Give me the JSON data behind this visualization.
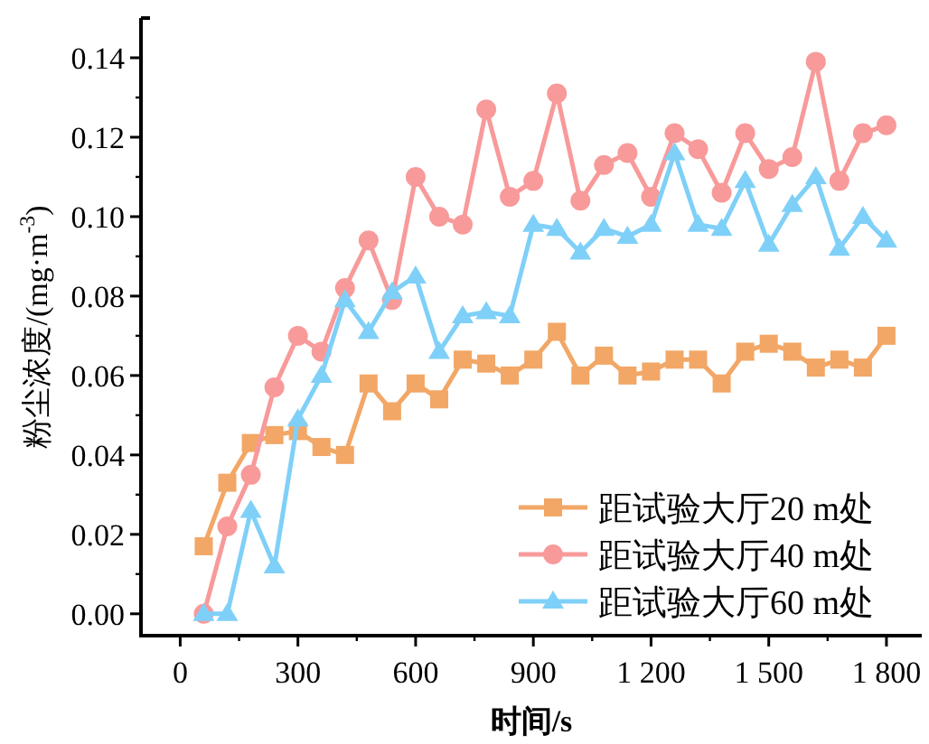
{
  "chart_data": {
    "type": "line",
    "xlabel": "时间/s",
    "ylabel": "粉尘浓度/(mg·m$^{-3}$)",
    "x": [
      60,
      120,
      180,
      240,
      300,
      360,
      420,
      480,
      540,
      600,
      660,
      720,
      780,
      840,
      900,
      960,
      1020,
      1080,
      1140,
      1200,
      1260,
      1320,
      1380,
      1440,
      1500,
      1560,
      1620,
      1680,
      1740,
      1800
    ],
    "xlim": [
      -100,
      1890
    ],
    "xticks": [
      0,
      300,
      600,
      900,
      {
        "value": 1200,
        "label": "1 200"
      },
      {
        "value": 1500,
        "label": "1 500"
      },
      {
        "value": 1800,
        "label": "1 800"
      }
    ],
    "ylim": [
      -0.0055,
      0.15
    ],
    "yticks": [
      {
        "value": 0,
        "label": "0.00"
      },
      {
        "value": 0.02,
        "label": "0.02"
      },
      {
        "value": 0.04,
        "label": "0.04"
      },
      {
        "value": 0.06,
        "label": "0.06"
      },
      {
        "value": 0.08,
        "label": "0.08"
      },
      {
        "value": 0.1,
        "label": "0.10"
      },
      {
        "value": 0.12,
        "label": "0.12"
      },
      {
        "value": 0.14,
        "label": "0.14"
      }
    ],
    "grid": false,
    "legend": "bottom right",
    "line_style": "solid",
    "series": [
      {
        "name": "距试验大厅20 m处",
        "color": "#f2a766",
        "marker": "square",
        "values": [
          0.017,
          0.033,
          0.043,
          0.045,
          0.046,
          0.042,
          0.04,
          0.058,
          0.051,
          0.058,
          0.054,
          0.064,
          0.063,
          0.06,
          0.064,
          0.071,
          0.06,
          0.065,
          0.06,
          0.061,
          0.064,
          0.064,
          0.058,
          0.066,
          0.068,
          0.066,
          0.062,
          0.064,
          0.062,
          0.07
        ]
      },
      {
        "name": "距试验大厅40 m处",
        "color": "#f89a9a",
        "marker": "circle",
        "values": [
          0,
          0.022,
          0.035,
          0.057,
          0.07,
          0.066,
          0.082,
          0.094,
          0.079,
          0.11,
          0.1,
          0.098,
          0.127,
          0.105,
          0.109,
          0.131,
          0.104,
          0.113,
          0.116,
          0.105,
          0.121,
          0.117,
          0.106,
          0.121,
          0.112,
          0.115,
          0.139,
          0.109,
          0.121,
          0.123
        ]
      },
      {
        "name": "距试验大厅60 m处",
        "color": "#7fd0f8",
        "marker": "triangle",
        "values": [
          0,
          0,
          0.026,
          0.012,
          0.049,
          0.06,
          0.079,
          0.071,
          0.081,
          0.085,
          0.066,
          0.075,
          0.076,
          0.075,
          0.098,
          0.097,
          0.091,
          0.097,
          0.095,
          0.098,
          0.116,
          0.098,
          0.097,
          0.109,
          0.093,
          0.103,
          0.11,
          0.092,
          0.1,
          0.094
        ]
      }
    ]
  }
}
